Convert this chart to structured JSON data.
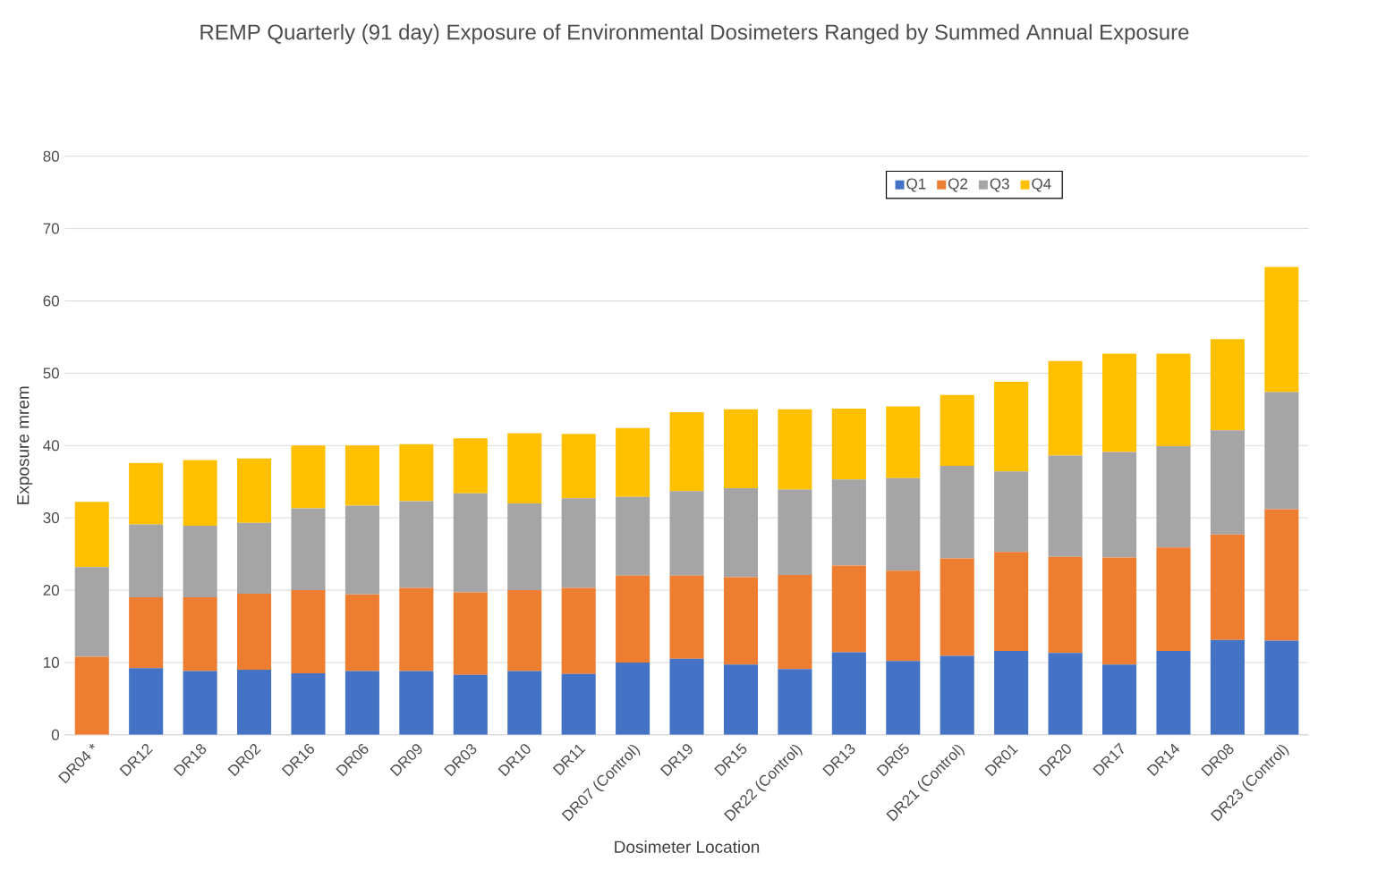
{
  "chart_data": {
    "type": "bar",
    "title": "REMP Quarterly (91 day) Exposure of Environmental Dosimeters Ranged by Summed Annual Exposure",
    "xlabel": "Dosimeter Location",
    "ylabel": "Exposure mrem",
    "categories": [
      "DR04 *",
      "DR12",
      "DR18",
      "DR02",
      "DR16",
      "DR06",
      "DR09",
      "DR03",
      "DR10",
      "DR11",
      "DR07  (Control)",
      "DR19",
      "DR15",
      "DR22  (Control)",
      "DR13",
      "DR05",
      "DR21 (Control)",
      "DR01",
      "DR20",
      "DR17",
      "DR14",
      "DR08",
      "DR23  (Control)"
    ],
    "series": [
      {
        "name": "Q1",
        "color": "#4472c4",
        "values": [
          0,
          9.2,
          8.8,
          9.0,
          8.5,
          8.8,
          8.8,
          8.3,
          8.8,
          8.4,
          10.0,
          10.5,
          9.7,
          9.1,
          11.4,
          10.2,
          10.9,
          11.6,
          11.3,
          9.7,
          11.6,
          13.1,
          13.0
        ]
      },
      {
        "name": "Q2",
        "color": "#ed7d31",
        "values": [
          10.8,
          9.8,
          10.2,
          10.5,
          11.5,
          10.6,
          11.5,
          11.4,
          11.2,
          11.9,
          12.0,
          11.5,
          12.1,
          13.0,
          12.0,
          12.5,
          13.5,
          13.7,
          13.3,
          14.8,
          14.3,
          14.6,
          18.2
        ]
      },
      {
        "name": "Q3",
        "color": "#a5a5a5",
        "values": [
          12.4,
          10.1,
          9.9,
          9.8,
          11.3,
          12.3,
          12.0,
          13.7,
          12.0,
          12.4,
          10.9,
          11.7,
          12.3,
          11.8,
          11.9,
          12.8,
          12.8,
          11.1,
          14.0,
          14.6,
          14.0,
          14.4,
          16.2
        ]
      },
      {
        "name": "Q4",
        "color": "#ffc000",
        "values": [
          9.0,
          8.5,
          9.1,
          8.9,
          8.7,
          8.3,
          7.9,
          7.6,
          9.7,
          8.9,
          9.5,
          10.9,
          10.9,
          11.1,
          9.8,
          9.9,
          9.8,
          12.4,
          13.1,
          13.6,
          12.8,
          12.6,
          17.3
        ]
      }
    ],
    "stacked": true,
    "ylim": [
      0,
      80
    ],
    "yticks": [
      0,
      10,
      20,
      30,
      40,
      50,
      60,
      70,
      80
    ],
    "grid": "y",
    "legend": "top right"
  }
}
